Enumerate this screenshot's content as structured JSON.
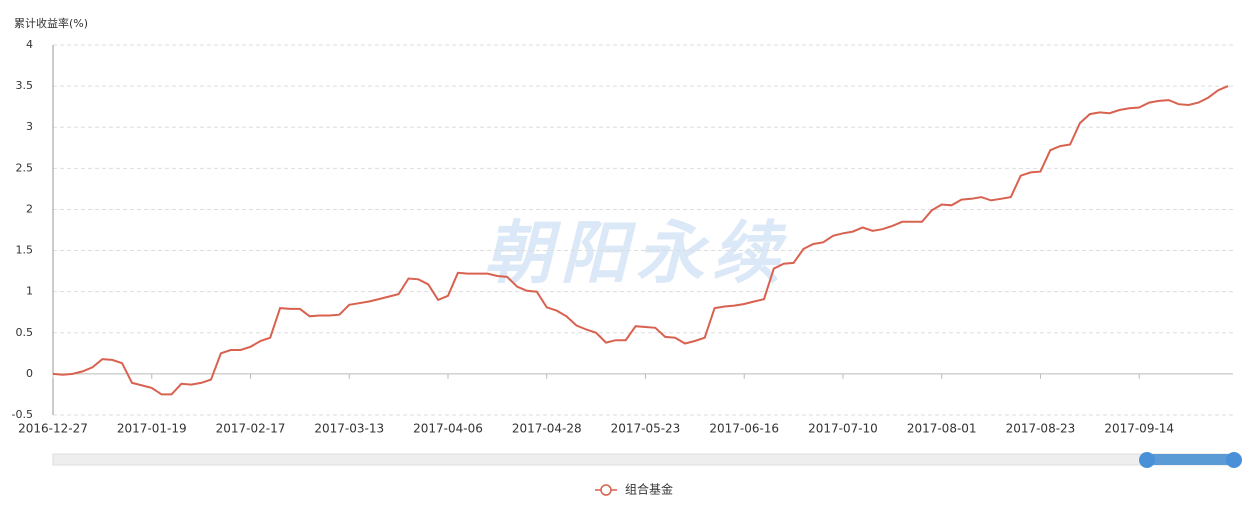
{
  "chart_data": {
    "type": "line",
    "y_label": "累计收益率(%)",
    "watermark": "朝阳永续",
    "categories": [
      "2016-12-27",
      null,
      null,
      null,
      null,
      null,
      null,
      null,
      null,
      null,
      "2017-01-19",
      null,
      null,
      null,
      null,
      null,
      null,
      null,
      null,
      null,
      "2017-02-17",
      null,
      null,
      null,
      null,
      null,
      null,
      null,
      null,
      null,
      "2017-03-13",
      null,
      null,
      null,
      null,
      null,
      null,
      null,
      null,
      null,
      "2017-04-06",
      null,
      null,
      null,
      null,
      null,
      null,
      null,
      null,
      null,
      "2017-04-28",
      null,
      null,
      null,
      null,
      null,
      null,
      null,
      null,
      null,
      "2017-05-23",
      null,
      null,
      null,
      null,
      null,
      null,
      null,
      null,
      null,
      "2017-06-16",
      null,
      null,
      null,
      null,
      null,
      null,
      null,
      null,
      null,
      "2017-07-10",
      null,
      null,
      null,
      null,
      null,
      null,
      null,
      null,
      null,
      "2017-08-01",
      null,
      null,
      null,
      null,
      null,
      null,
      null,
      null,
      null,
      "2017-08-23",
      null,
      null,
      null,
      null,
      null,
      null,
      null,
      null,
      null,
      "2017-09-14",
      null,
      null,
      null,
      null,
      null,
      null,
      null,
      null,
      null
    ],
    "series": [
      {
        "name": "组合基金",
        "color": "#d9614f",
        "values": [
          0,
          -0.01,
          0,
          0.03,
          0.08,
          0.18,
          0.17,
          0.13,
          -0.11,
          -0.14,
          -0.17,
          -0.25,
          -0.25,
          -0.12,
          -0.13,
          -0.11,
          -0.07,
          0.25,
          0.29,
          0.29,
          0.33,
          0.4,
          0.44,
          0.8,
          0.79,
          0.79,
          0.7,
          0.71,
          0.71,
          0.72,
          0.84,
          0.86,
          0.88,
          0.91,
          0.94,
          0.97,
          1.16,
          1.15,
          1.09,
          0.9,
          0.95,
          1.23,
          1.22,
          1.22,
          1.22,
          1.19,
          1.18,
          1.06,
          1.01,
          1.0,
          0.81,
          0.77,
          0.7,
          0.59,
          0.54,
          0.5,
          0.38,
          0.41,
          0.41,
          0.58,
          0.57,
          0.56,
          0.45,
          0.44,
          0.37,
          0.4,
          0.44,
          0.8,
          0.82,
          0.83,
          0.85,
          0.88,
          0.91,
          1.28,
          1.34,
          1.35,
          1.52,
          1.58,
          1.6,
          1.68,
          1.71,
          1.73,
          1.78,
          1.74,
          1.76,
          1.8,
          1.85,
          1.85,
          1.85,
          1.99,
          2.06,
          2.05,
          2.12,
          2.13,
          2.15,
          2.11,
          2.13,
          2.15,
          2.41,
          2.45,
          2.46,
          2.72,
          2.77,
          2.79,
          3.05,
          3.16,
          3.18,
          3.17,
          3.21,
          3.23,
          3.24,
          3.3,
          3.32,
          3.33,
          3.28,
          3.27,
          3.3,
          3.36,
          3.45,
          3.5
        ]
      }
    ],
    "ylim": [
      -0.5,
      4
    ],
    "yticks": [
      -0.5,
      0,
      0.5,
      1,
      1.5,
      2,
      2.5,
      3,
      3.5,
      4
    ],
    "grid": true
  }
}
